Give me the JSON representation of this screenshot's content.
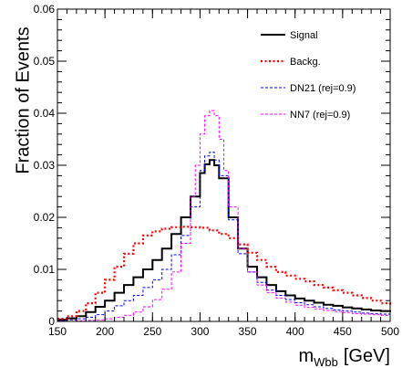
{
  "chart_data": {
    "type": "line",
    "title": "",
    "xlabel_main": "m",
    "xlabel_sub": "Wbb",
    "xlabel_unit": "[GeV]",
    "ylabel": "Fraction of Events",
    "xlim": [
      150,
      500
    ],
    "ylim": [
      0,
      0.06
    ],
    "x_ticks": [
      150,
      200,
      250,
      300,
      350,
      400,
      450,
      500
    ],
    "x_tick_labels": [
      "150",
      "200",
      "250",
      "300",
      "350",
      "400",
      "450",
      "500"
    ],
    "y_ticks": [
      0,
      0.01,
      0.02,
      0.03,
      0.04,
      0.05,
      0.06
    ],
    "y_tick_labels": [
      "0",
      "0.01",
      "0.02",
      "0.03",
      "0.04",
      "0.05",
      "0.06"
    ],
    "grid": false,
    "legend_position": "top-right",
    "series": [
      {
        "name": "Signal",
        "color": "#000000",
        "style": "solid-thick",
        "x": [
          150,
          160,
          170,
          180,
          190,
          200,
          210,
          220,
          230,
          240,
          250,
          260,
          270,
          280,
          290,
          300,
          305,
          310,
          315,
          320,
          330,
          340,
          350,
          360,
          370,
          380,
          390,
          400,
          410,
          420,
          430,
          440,
          450,
          460,
          470,
          480,
          490,
          500
        ],
        "y": [
          0.0003,
          0.0006,
          0.001,
          0.0018,
          0.0028,
          0.004,
          0.0055,
          0.007,
          0.0085,
          0.01,
          0.0118,
          0.014,
          0.0168,
          0.02,
          0.024,
          0.0285,
          0.0302,
          0.031,
          0.03,
          0.0275,
          0.02,
          0.014,
          0.0105,
          0.0085,
          0.007,
          0.0058,
          0.005,
          0.0044,
          0.004,
          0.0036,
          0.0032,
          0.003,
          0.0027,
          0.0025,
          0.0023,
          0.0021,
          0.002,
          0.0018
        ]
      },
      {
        "name": "Backg.",
        "color": "#ff0000",
        "style": "dotted-thick",
        "x": [
          150,
          160,
          170,
          180,
          190,
          200,
          210,
          220,
          230,
          240,
          250,
          260,
          270,
          280,
          290,
          300,
          310,
          320,
          330,
          340,
          350,
          360,
          370,
          380,
          390,
          400,
          410,
          420,
          430,
          440,
          450,
          460,
          470,
          480,
          490,
          500
        ],
        "y": [
          0.0005,
          0.001,
          0.002,
          0.0035,
          0.0055,
          0.008,
          0.0105,
          0.013,
          0.015,
          0.0165,
          0.0173,
          0.0178,
          0.0181,
          0.0182,
          0.0181,
          0.018,
          0.0175,
          0.0168,
          0.016,
          0.0148,
          0.0132,
          0.0118,
          0.0105,
          0.0095,
          0.0088,
          0.0082,
          0.0077,
          0.007,
          0.0065,
          0.006,
          0.0055,
          0.005,
          0.0045,
          0.004,
          0.0035,
          0.003
        ]
      },
      {
        "name": "DN21 (rej=0.9)",
        "color": "#0000ff",
        "style": "dashed",
        "x": [
          150,
          160,
          170,
          180,
          190,
          200,
          210,
          220,
          230,
          240,
          250,
          260,
          270,
          280,
          290,
          300,
          305,
          310,
          315,
          320,
          330,
          340,
          350,
          360,
          370,
          380,
          390,
          400,
          410,
          420,
          430,
          440,
          450,
          460,
          470,
          480,
          490,
          500
        ],
        "y": [
          0.0001,
          0.0003,
          0.0005,
          0.0008,
          0.0013,
          0.002,
          0.003,
          0.004,
          0.005,
          0.0065,
          0.008,
          0.01,
          0.0128,
          0.0165,
          0.022,
          0.029,
          0.0318,
          0.0325,
          0.031,
          0.028,
          0.0195,
          0.013,
          0.0095,
          0.0075,
          0.006,
          0.005,
          0.0042,
          0.0036,
          0.0032,
          0.0028,
          0.0025,
          0.0022,
          0.002,
          0.0018,
          0.0016,
          0.0015,
          0.0014,
          0.0012
        ]
      },
      {
        "name": "NN7 (rej=0.9)",
        "color": "#ff00ff",
        "style": "dashed",
        "x": [
          150,
          160,
          170,
          180,
          190,
          200,
          210,
          220,
          230,
          240,
          250,
          260,
          270,
          280,
          290,
          295,
          300,
          305,
          310,
          315,
          320,
          325,
          330,
          340,
          350,
          360,
          370,
          380,
          390,
          400,
          410,
          420,
          430,
          440,
          450,
          460,
          470,
          480,
          490,
          500
        ],
        "y": [
          0.0,
          0.0,
          0.0001,
          0.0002,
          0.0003,
          0.0005,
          0.0008,
          0.0012,
          0.0018,
          0.0028,
          0.0042,
          0.0062,
          0.0095,
          0.015,
          0.024,
          0.03,
          0.036,
          0.0395,
          0.0405,
          0.0395,
          0.035,
          0.029,
          0.022,
          0.014,
          0.0095,
          0.007,
          0.0055,
          0.0045,
          0.0037,
          0.0031,
          0.0027,
          0.0024,
          0.0021,
          0.0019,
          0.0017,
          0.0015,
          0.0014,
          0.0013,
          0.0012,
          0.0011
        ]
      }
    ]
  }
}
